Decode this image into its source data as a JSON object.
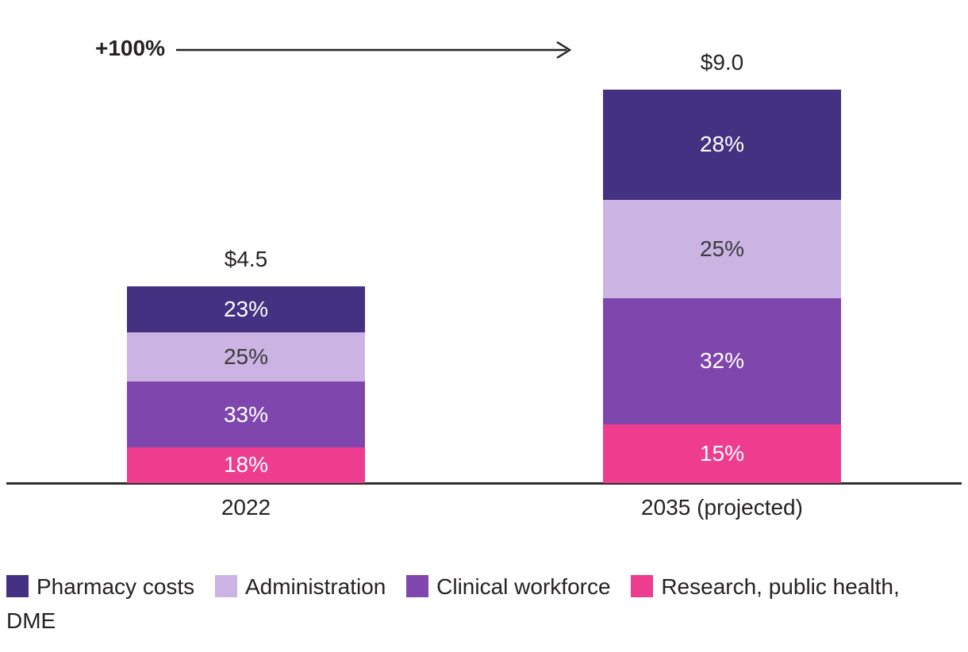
{
  "chart_data": {
    "type": "bar",
    "stacked": true,
    "annotations": {
      "growth_label": "+100%"
    },
    "categories": [
      "2022",
      "2035 (projected)"
    ],
    "totals": [
      4.5,
      9.0
    ],
    "total_labels": [
      "$4.5",
      "$9.0"
    ],
    "value_suffix": "%",
    "series": [
      {
        "name": "Pharmacy costs",
        "values": [
          23,
          28
        ],
        "color": "#453181",
        "label_color": "#ffffff"
      },
      {
        "name": "Administration",
        "values": [
          25,
          25
        ],
        "color": "#cbb3e3",
        "label_color": "#3b3b3b"
      },
      {
        "name": "Clinical workforce",
        "values": [
          33,
          32
        ],
        "color": "#7f47ae",
        "label_color": "#ffffff"
      },
      {
        "name": "Research, public health, DME",
        "values": [
          18,
          15
        ],
        "color": "#ee3d8e",
        "label_color": "#ffffff"
      }
    ],
    "legend_position": "bottom",
    "axis_color": "#2e2e2e",
    "text_color": "#262223",
    "arrow_color": "#262223"
  }
}
